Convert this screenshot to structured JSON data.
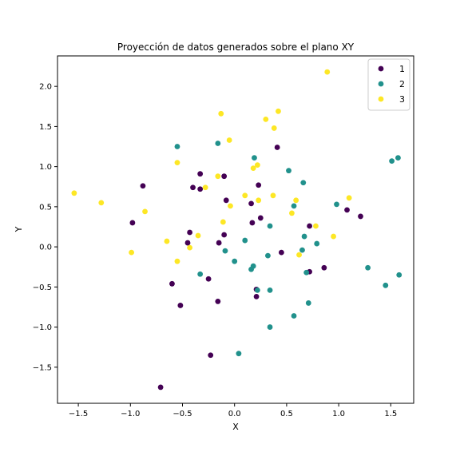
{
  "chart_data": {
    "type": "scatter",
    "title": "Proyección de datos generados sobre el plano XY",
    "xlabel": "X",
    "ylabel": "Y",
    "xlim": [
      -1.7,
      1.72
    ],
    "ylim": [
      -1.95,
      2.38
    ],
    "xticks": [
      -1.5,
      -1.0,
      -0.5,
      0.0,
      0.5,
      1.0,
      1.5
    ],
    "xtick_labels": [
      "−1.5",
      "−1.0",
      "−0.5",
      "0.0",
      "0.5",
      "1.0",
      "1.5"
    ],
    "yticks": [
      -1.5,
      -1.0,
      -0.5,
      0.0,
      0.5,
      1.0,
      1.5,
      2.0
    ],
    "ytick_labels": [
      "−1.5",
      "−1.0",
      "−0.5",
      "0.0",
      "0.5",
      "1.0",
      "1.5",
      "2.0"
    ],
    "grid": false,
    "legend_position": "top-right",
    "series": [
      {
        "name": "1",
        "color": "#440154",
        "points": [
          [
            -0.88,
            0.76
          ],
          [
            -0.98,
            0.3
          ],
          [
            -0.33,
            0.91
          ],
          [
            -0.1,
            0.88
          ],
          [
            -0.4,
            0.74
          ],
          [
            -0.33,
            0.72
          ],
          [
            -0.08,
            0.58
          ],
          [
            0.16,
            0.54
          ],
          [
            0.23,
            0.77
          ],
          [
            0.41,
            1.24
          ],
          [
            -0.43,
            0.18
          ],
          [
            -0.45,
            0.05
          ],
          [
            -0.15,
            0.05
          ],
          [
            -0.1,
            0.15
          ],
          [
            0.17,
            0.3
          ],
          [
            0.25,
            0.36
          ],
          [
            0.72,
            0.26
          ],
          [
            0.45,
            -0.07
          ],
          [
            1.08,
            0.46
          ],
          [
            1.21,
            0.38
          ],
          [
            0.86,
            -0.26
          ],
          [
            0.72,
            -0.31
          ],
          [
            -0.6,
            -0.46
          ],
          [
            -0.52,
            -0.73
          ],
          [
            -0.25,
            -0.4
          ],
          [
            -0.16,
            -0.68
          ],
          [
            0.21,
            -0.53
          ],
          [
            0.21,
            -0.62
          ],
          [
            -0.23,
            -1.35
          ],
          [
            -0.71,
            -1.75
          ]
        ]
      },
      {
        "name": "2",
        "color": "#21918c",
        "points": [
          [
            -0.55,
            1.25
          ],
          [
            -0.16,
            1.29
          ],
          [
            0.19,
            1.11
          ],
          [
            0.52,
            0.95
          ],
          [
            0.66,
            0.8
          ],
          [
            0.98,
            0.53
          ],
          [
            1.51,
            1.07
          ],
          [
            1.57,
            1.11
          ],
          [
            0.57,
            0.51
          ],
          [
            0.34,
            0.26
          ],
          [
            0.67,
            0.13
          ],
          [
            0.79,
            0.04
          ],
          [
            0.1,
            0.08
          ],
          [
            0.65,
            -0.04
          ],
          [
            -0.09,
            -0.05
          ],
          [
            0.32,
            -0.11
          ],
          [
            0.0,
            -0.18
          ],
          [
            0.18,
            -0.24
          ],
          [
            0.16,
            -0.28
          ],
          [
            0.69,
            -0.32
          ],
          [
            1.28,
            -0.26
          ],
          [
            1.58,
            -0.35
          ],
          [
            1.45,
            -0.48
          ],
          [
            -0.33,
            -0.34
          ],
          [
            0.22,
            -0.54
          ],
          [
            0.34,
            -0.54
          ],
          [
            0.71,
            -0.7
          ],
          [
            0.57,
            -0.86
          ],
          [
            0.34,
            -1.0
          ],
          [
            0.04,
            -1.33
          ]
        ]
      },
      {
        "name": "3",
        "color": "#fde725",
        "points": [
          [
            0.89,
            2.18
          ],
          [
            -0.13,
            1.66
          ],
          [
            0.42,
            1.69
          ],
          [
            0.3,
            1.59
          ],
          [
            0.38,
            1.48
          ],
          [
            -0.05,
            1.33
          ],
          [
            -0.55,
            1.05
          ],
          [
            0.22,
            1.02
          ],
          [
            0.18,
            0.98
          ],
          [
            -0.16,
            0.88
          ],
          [
            -0.28,
            0.74
          ],
          [
            0.1,
            0.64
          ],
          [
            0.37,
            0.64
          ],
          [
            0.23,
            0.58
          ],
          [
            0.59,
            0.58
          ],
          [
            1.1,
            0.61
          ],
          [
            -1.54,
            0.67
          ],
          [
            -1.28,
            0.55
          ],
          [
            -0.86,
            0.44
          ],
          [
            -0.04,
            0.51
          ],
          [
            0.55,
            0.42
          ],
          [
            -0.11,
            0.31
          ],
          [
            0.78,
            0.26
          ],
          [
            0.95,
            0.13
          ],
          [
            -0.35,
            0.14
          ],
          [
            -0.65,
            0.07
          ],
          [
            -0.43,
            -0.01
          ],
          [
            0.62,
            -0.1
          ],
          [
            -0.99,
            -0.07
          ],
          [
            -0.55,
            -0.18
          ]
        ]
      }
    ]
  }
}
